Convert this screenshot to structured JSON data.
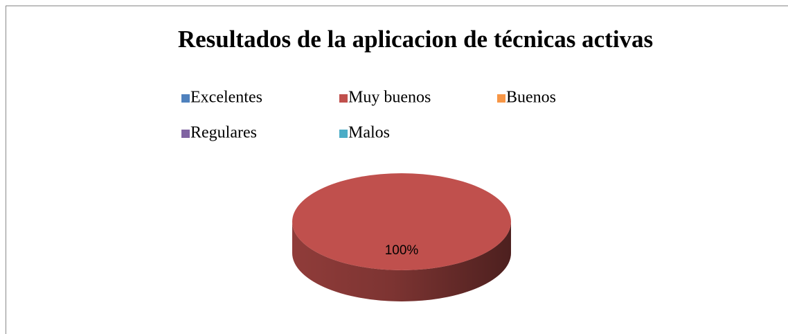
{
  "chart_data": {
    "type": "pie",
    "title": "Resultados de la aplicacion de técnicas activas",
    "categories": [
      "Excelentes",
      "Muy buenos",
      "Buenos",
      "Regulares",
      "Malos"
    ],
    "values": [
      0,
      100,
      0,
      0,
      0
    ],
    "value_labels": [
      null,
      "100%",
      null,
      null,
      null
    ],
    "colors": [
      "#4f81bd",
      "#c0504d",
      "#f79646",
      "#8064a2",
      "#4bacc6"
    ],
    "legend": "top",
    "3d": true
  }
}
